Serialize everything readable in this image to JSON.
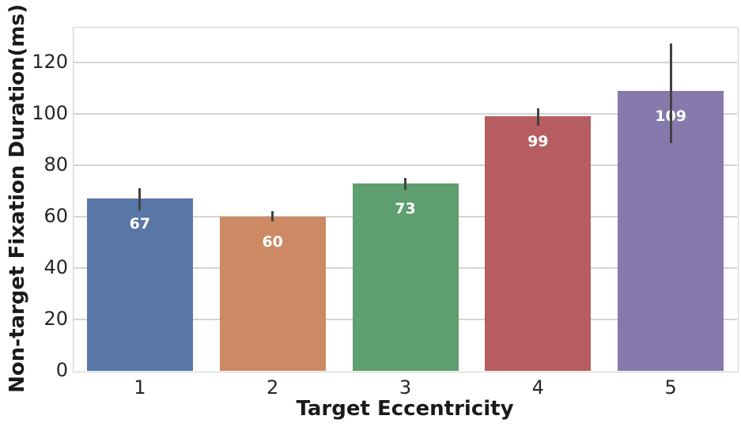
{
  "chart_data": {
    "type": "bar",
    "title": "",
    "xlabel": "Target Eccentricity",
    "ylabel": "Non-target Fixation Duration(ms)",
    "categories": [
      "1",
      "2",
      "3",
      "4",
      "5"
    ],
    "values": [
      67,
      60,
      73,
      99,
      109
    ],
    "bar_labels": [
      "67",
      "60",
      "73",
      "99",
      "109"
    ],
    "error_low": [
      62.5,
      58,
      70.5,
      95.5,
      88.5
    ],
    "error_high": [
      71,
      62,
      75,
      102,
      127.5
    ],
    "bar_colors": [
      "#5877a6",
      "#cc8963",
      "#5f9e6e",
      "#b55d60",
      "#857aab"
    ],
    "error_bar_color": "#424242",
    "value_label_color": "#ffffff",
    "grid_color": "#d4d4d4",
    "yticks": [
      0,
      20,
      40,
      60,
      80,
      100,
      120
    ],
    "ylim": [
      0,
      133.5
    ],
    "grid": "horizontal",
    "legend": "none",
    "background": "#ffffff"
  }
}
